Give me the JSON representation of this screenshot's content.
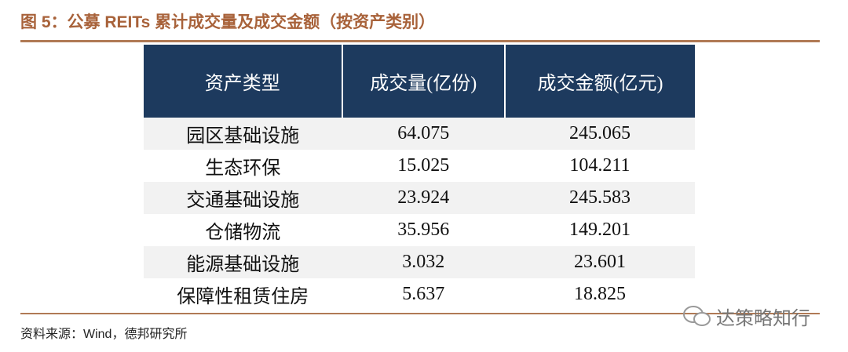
{
  "header": {
    "title": "图 5：公募 REITs 累计成交量及成交金额（按资产类别）"
  },
  "table": {
    "columns": [
      "资产类型",
      "成交量(亿份)",
      "成交金额(亿元)"
    ],
    "rows": [
      [
        "园区基础设施",
        "64.075",
        "245.065"
      ],
      [
        "生态环保",
        "15.025",
        "104.211"
      ],
      [
        "交通基础设施",
        "23.924",
        "245.583"
      ],
      [
        "仓储物流",
        "35.956",
        "149.201"
      ],
      [
        "能源基础设施",
        "3.032",
        "23.601"
      ],
      [
        "保障性租赁住房",
        "5.637",
        "18.825"
      ]
    ]
  },
  "footer": {
    "source": "资料来源：Wind，德邦研究所"
  },
  "watermark": "达策略知行"
}
